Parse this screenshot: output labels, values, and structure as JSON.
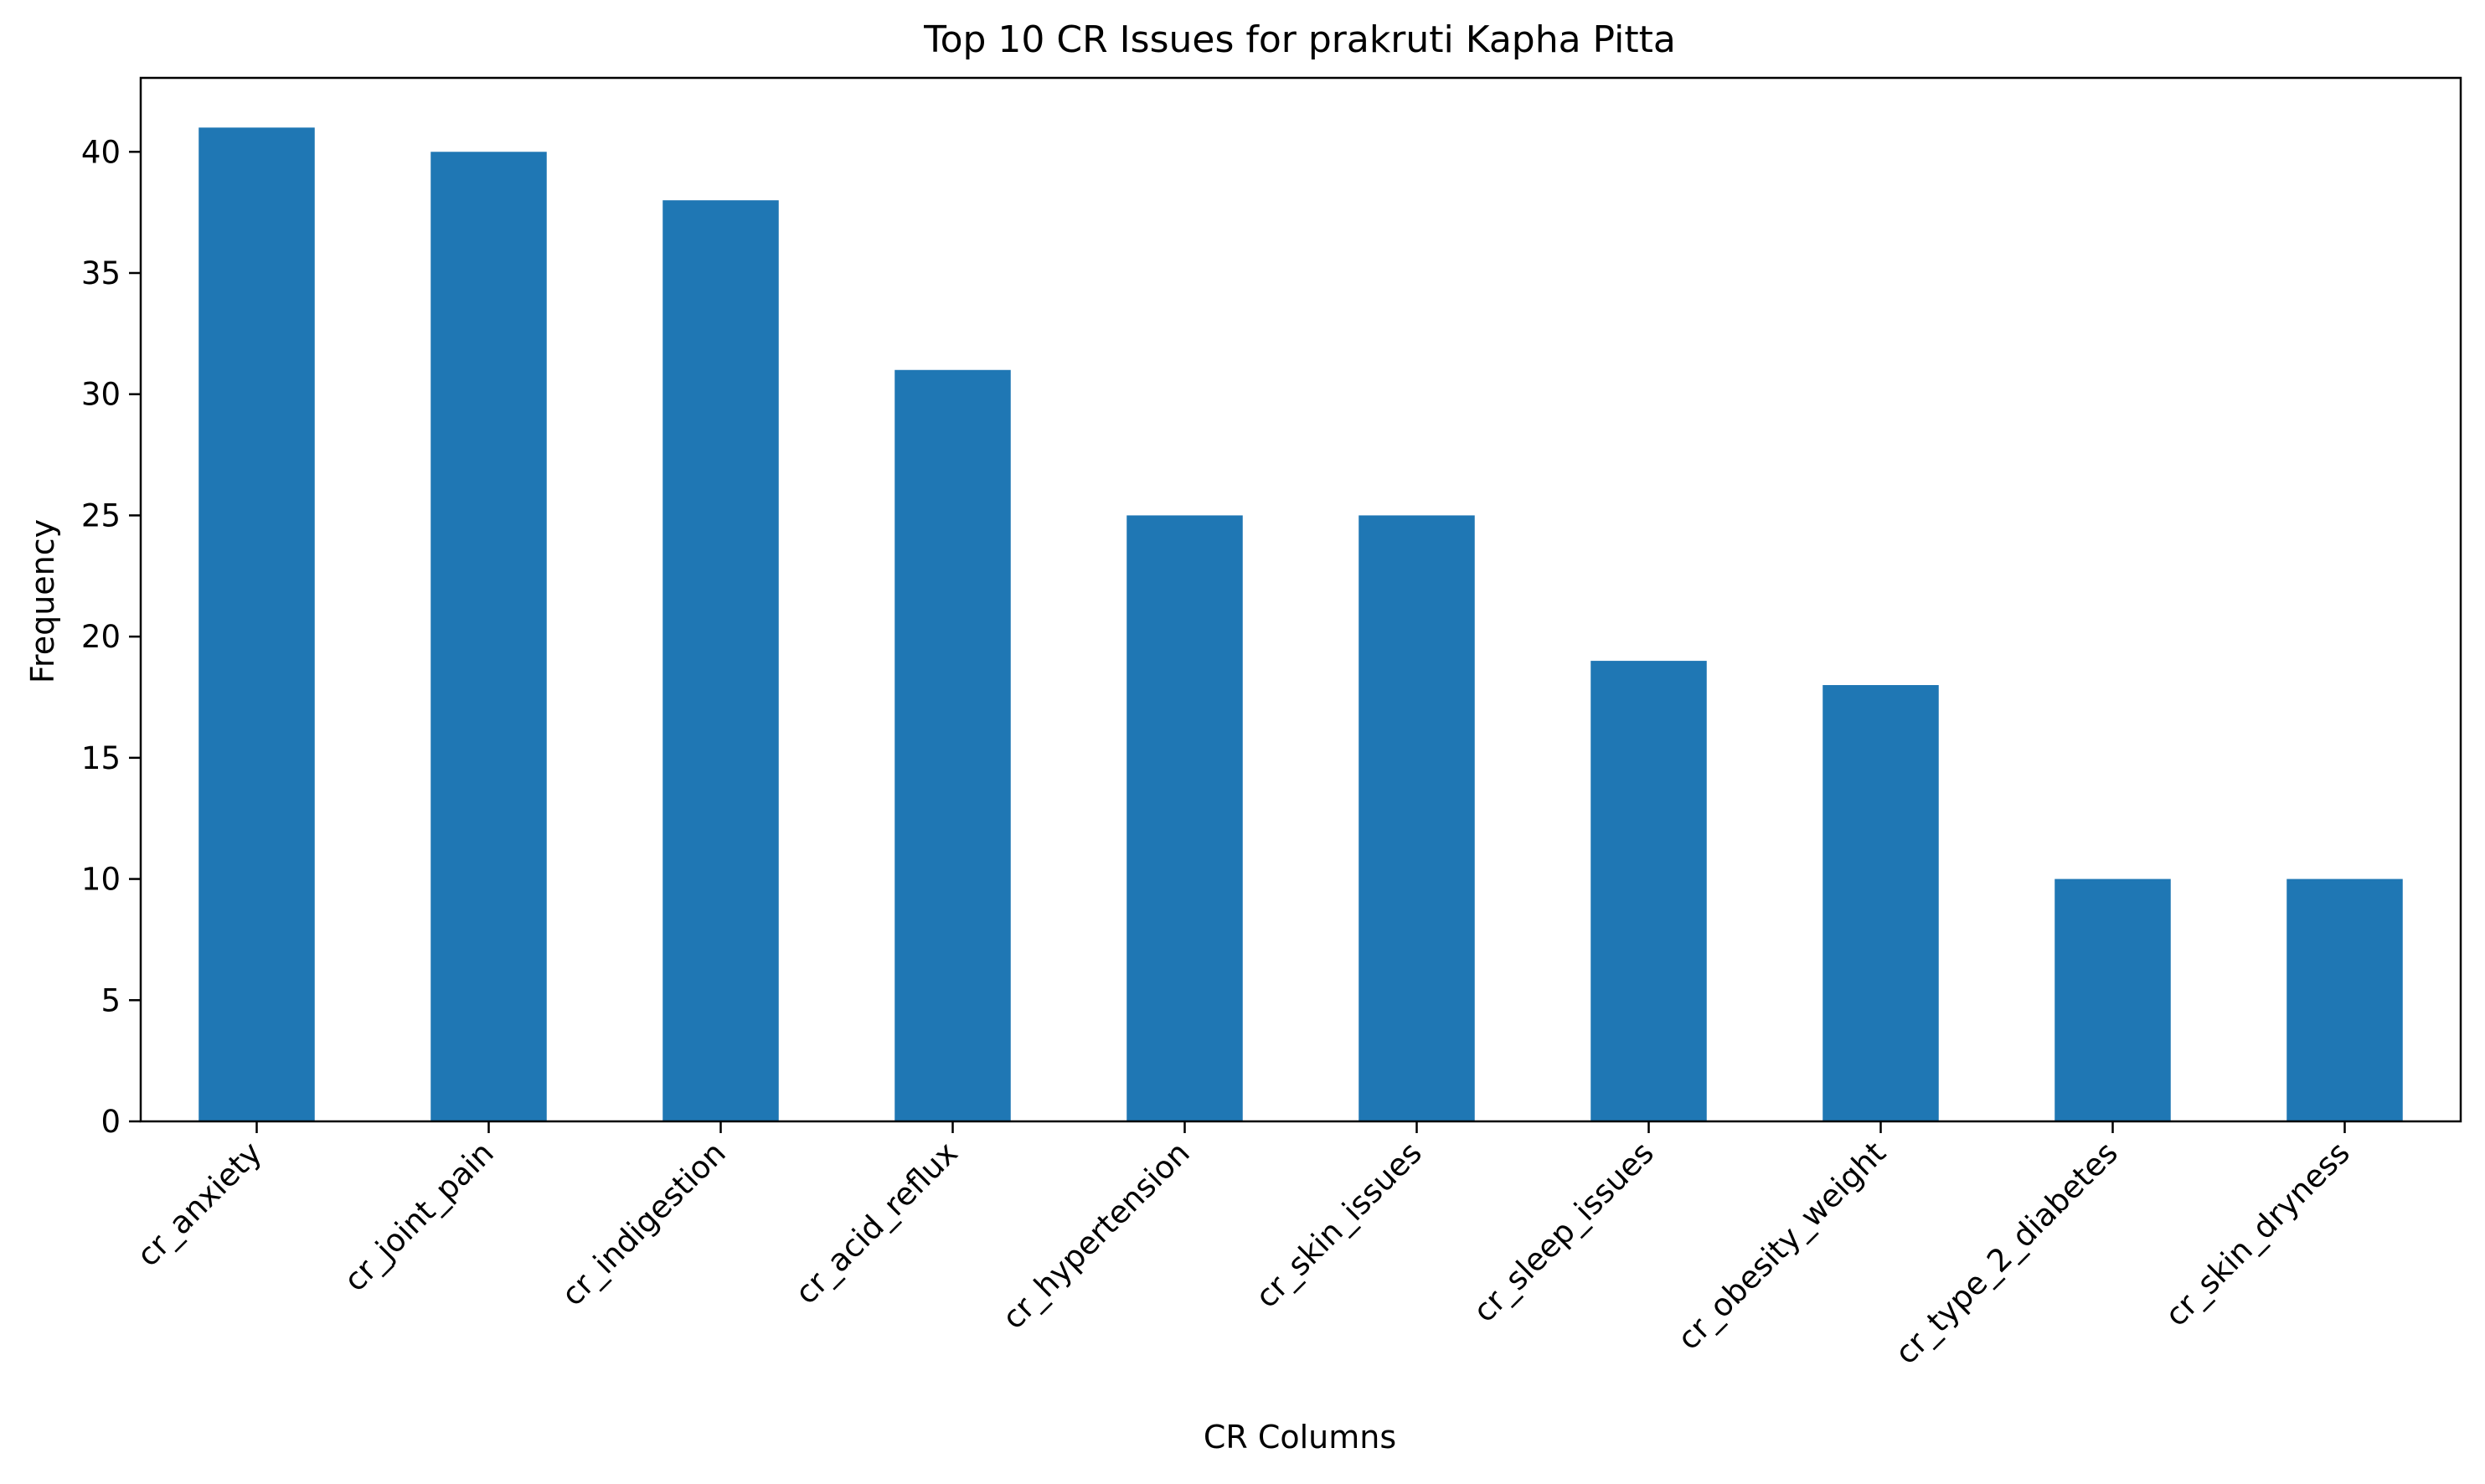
{
  "chart_data": {
    "type": "bar",
    "title": "Top 10 CR Issues for prakruti Kapha Pitta",
    "xlabel": "CR Columns",
    "ylabel": "Frequency",
    "categories": [
      "cr_anxiety",
      "cr_joint_pain",
      "cr_indigestion",
      "cr_acid_reflux",
      "cr_hypertension",
      "cr_skin_issues",
      "cr_sleep_issues",
      "cr_obesity_weight",
      "cr_type_2_diabetes",
      "cr_skin_dryness"
    ],
    "values": [
      41,
      40,
      38,
      31,
      25,
      25,
      19,
      18,
      10,
      10
    ],
    "ylim": [
      0,
      43.05
    ],
    "yticks": [
      0,
      5,
      10,
      15,
      20,
      25,
      30,
      35,
      40
    ],
    "bar_color": "#1f77b4",
    "grid": false,
    "legend": "none"
  }
}
